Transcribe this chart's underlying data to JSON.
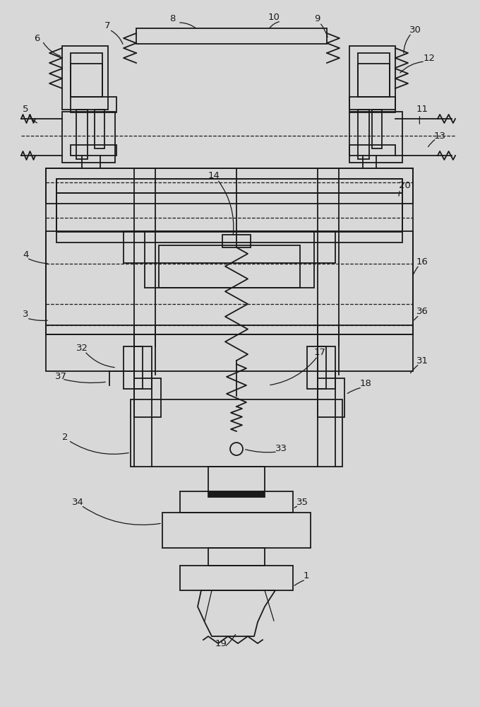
{
  "bg_color": "#d8d8d8",
  "line_color": "#1a1a1a",
  "lw": 1.3,
  "lw_thin": 0.9,
  "fs": 9.5,
  "fig_width": 6.8,
  "fig_height": 10.0
}
